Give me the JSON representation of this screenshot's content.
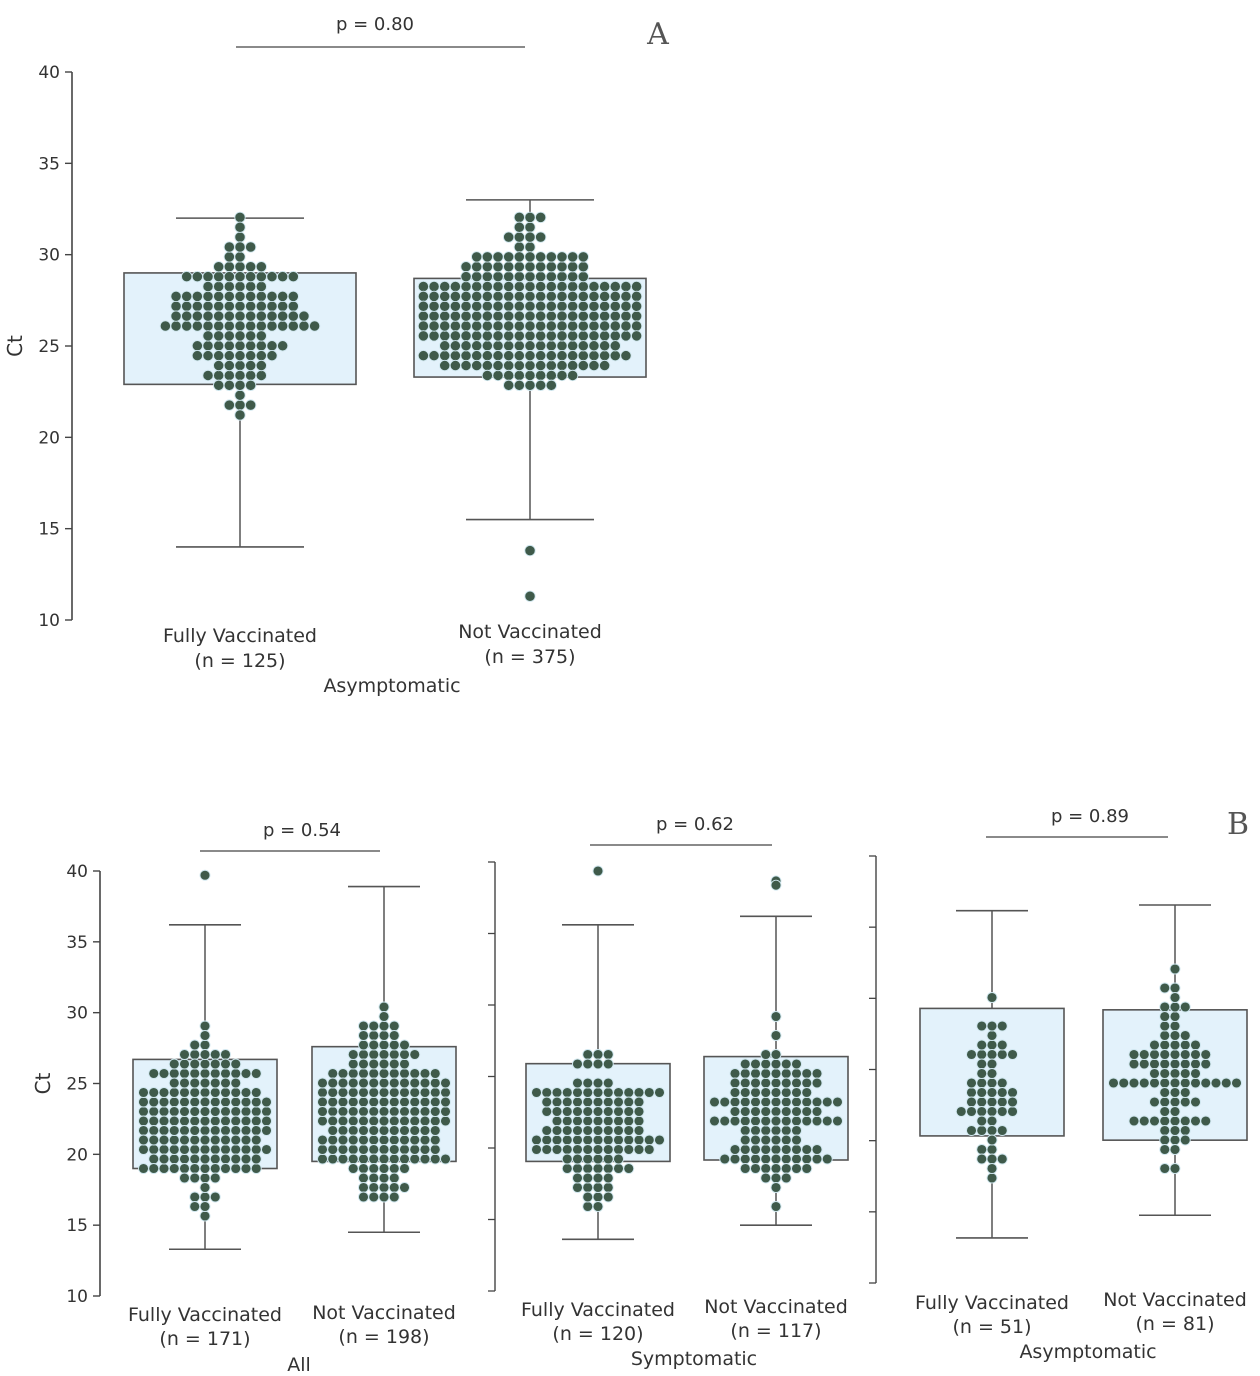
{
  "chart_data": [
    {
      "panel": "A",
      "type": "box",
      "ylabel": "Ct",
      "ylim": [
        10,
        40
      ],
      "yticks": [
        10,
        15,
        20,
        25,
        30,
        35,
        40
      ],
      "groups": [
        {
          "label": "Asymptomatic",
          "p_value": "p = 0.80",
          "categories": [
            {
              "label": "Fully Vaccinated",
              "n_label": "(n = 125)",
              "n": 125,
              "whisker_low": 14.0,
              "q1": 22.9,
              "median": 26.2,
              "q3": 29.0,
              "whisker_high": 32.0,
              "outliers": []
            },
            {
              "label": "Not Vaccinated",
              "n_label": "(n = 375)",
              "n": 375,
              "whisker_low": 15.5,
              "q1": 23.3,
              "median": 26.7,
              "q3": 28.7,
              "whisker_high": 33.0,
              "outliers": [
                13.8,
                11.3
              ]
            }
          ]
        }
      ]
    },
    {
      "panel": "B",
      "type": "box",
      "ylabel": "Ct",
      "ylim": [
        10,
        40
      ],
      "yticks": [
        10,
        15,
        20,
        25,
        30,
        35,
        40
      ],
      "groups": [
        {
          "label": "All",
          "p_value": "p = 0.54",
          "categories": [
            {
              "label": "Fully Vaccinated",
              "n_label": "(n = 171)",
              "n": 171,
              "whisker_low": 13.3,
              "q1": 19.0,
              "median": 22.2,
              "q3": 26.7,
              "whisker_high": 36.2,
              "outliers": [
                39.7
              ]
            },
            {
              "label": "Not Vaccinated",
              "n_label": "(n = 198)",
              "n": 198,
              "whisker_low": 14.5,
              "q1": 19.5,
              "median": 23.0,
              "q3": 27.6,
              "whisker_high": 38.9,
              "outliers": []
            }
          ]
        },
        {
          "label": "Symptomatic",
          "p_value": "p = 0.62",
          "categories": [
            {
              "label": "Fully Vaccinated",
              "n_label": "(n = 120)",
              "n": 120,
              "whisker_low": 14.0,
              "q1": 19.5,
              "median": 21.8,
              "q3": 26.4,
              "whisker_high": 36.2,
              "outliers": [
                40.0
              ]
            },
            {
              "label": "Not Vaccinated",
              "n_label": "(n = 117)",
              "n": 117,
              "whisker_low": 15.0,
              "q1": 19.6,
              "median": 22.6,
              "q3": 26.9,
              "whisker_high": 36.8,
              "outliers": [
                39.3,
                39.0
              ]
            }
          ]
        },
        {
          "label": "Asymptomatic",
          "p_value": "p = 0.89",
          "categories": [
            {
              "label": "Fully Vaccinated",
              "n_label": "(n = 51)",
              "n": 51,
              "whisker_low": 14.1,
              "q1": 21.3,
              "median": 25.0,
              "q3": 30.3,
              "whisker_high": 37.2,
              "outliers": []
            },
            {
              "label": "Not Vaccinated",
              "n_label": "(n = 81)",
              "n": 81,
              "whisker_low": 15.7,
              "q1": 21.0,
              "median": 24.9,
              "q3": 30.2,
              "whisker_high": 37.6,
              "outliers": []
            }
          ]
        }
      ]
    }
  ],
  "colors": {
    "box_fill": "#e3f2fb",
    "box_line": "#555555",
    "dot_fill": "#3f5a4a",
    "dot_edge": "#cfe6ee",
    "axis": "#444444"
  }
}
